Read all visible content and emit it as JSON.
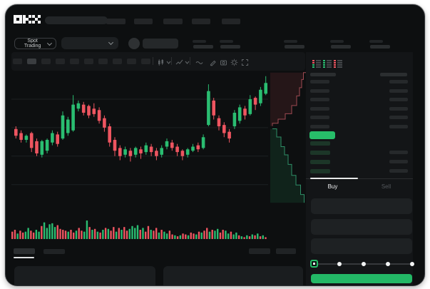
{
  "app": {
    "logo_text": "OKX"
  },
  "header": {
    "nav_item_count": 5,
    "search": {
      "placeholder": ""
    }
  },
  "market_bar": {
    "mode_label": "Spot Trading",
    "stat_group_count": 5
  },
  "chart_toolbar": {
    "timeframe_count": 10,
    "active_timeframe_index": 1,
    "icons": [
      "candle-type",
      "chevron-down",
      "interval",
      "chevron-down",
      "indicator-wave",
      "draw-pencil",
      "camera",
      "settings-gear",
      "fullscreen"
    ]
  },
  "order_book": {
    "view_icons": [
      "combined",
      "bids",
      "asks"
    ],
    "ask_row_count": 6,
    "bid_row_count": 4,
    "bid_right_row_count": 3,
    "last_price_color": "#27bd69"
  },
  "trade_panel": {
    "buy_label": "Buy",
    "sell_label": "Sell",
    "active_tab": "Buy",
    "field_count": 3,
    "slider_stops": [
      0,
      25,
      50,
      75,
      100
    ],
    "slider_value": 0,
    "buy_button_color": "#23b866"
  },
  "bottom_bar": {
    "left_tab_count": 2,
    "active_tab_index": 0,
    "right_button_count": 2,
    "panel_count": 2
  },
  "colors": {
    "background": "#0d0f10",
    "panel": "#17191b",
    "placeholder": "#242729",
    "up_green": "#2abd71",
    "down_red": "#ee5560",
    "accent_green": "#23b866",
    "text": "#c9ccce",
    "text_dim": "#53575b",
    "grid": "#1d2022"
  },
  "chart_data": {
    "type": "candlestick+volume+depth",
    "price_range": [
      0,
      100
    ],
    "gridline_prices": [
      80,
      59,
      38,
      17
    ],
    "candles_ochl": [
      [
        58,
        53,
        60,
        51
      ],
      [
        55,
        50,
        57,
        48
      ],
      [
        50,
        53,
        54,
        48
      ],
      [
        55,
        44,
        56,
        41
      ],
      [
        49,
        40,
        51,
        38
      ],
      [
        39,
        49,
        50,
        37
      ],
      [
        42,
        50,
        51,
        40
      ],
      [
        48,
        55,
        57,
        46
      ],
      [
        54,
        47,
        56,
        45
      ],
      [
        51,
        68,
        71,
        50
      ],
      [
        55,
        65,
        67,
        53
      ],
      [
        57,
        76,
        83,
        56
      ],
      [
        73,
        77,
        79,
        71
      ],
      [
        76,
        70,
        78,
        68
      ],
      [
        75,
        68,
        76,
        66
      ],
      [
        73,
        69,
        77,
        67
      ],
      [
        72,
        64,
        74,
        62
      ],
      [
        66,
        59,
        68,
        56
      ],
      [
        60,
        48,
        62,
        45
      ],
      [
        50,
        42,
        52,
        38
      ],
      [
        44,
        38,
        46,
        35
      ],
      [
        39,
        43,
        45,
        37
      ],
      [
        42,
        38,
        44,
        34
      ],
      [
        39,
        44,
        45,
        37
      ],
      [
        43,
        40,
        45,
        36
      ],
      [
        41,
        46,
        48,
        39
      ],
      [
        45,
        41,
        47,
        38
      ],
      [
        42,
        38,
        44,
        35
      ],
      [
        39,
        44,
        46,
        37
      ],
      [
        45,
        49,
        51,
        43
      ],
      [
        48,
        44,
        50,
        42
      ],
      [
        45,
        41,
        47,
        38
      ],
      [
        42,
        38,
        43,
        35
      ],
      [
        39,
        43,
        44,
        37
      ],
      [
        42,
        45,
        47,
        41
      ],
      [
        46,
        43,
        48,
        41
      ],
      [
        44,
        52,
        54,
        43
      ],
      [
        61,
        86,
        91,
        60
      ],
      [
        79,
        68,
        81,
        65
      ],
      [
        66,
        60,
        68,
        57
      ],
      [
        61,
        55,
        63,
        52
      ],
      [
        56,
        51,
        58,
        48
      ],
      [
        60,
        70,
        72,
        58
      ],
      [
        64,
        74,
        76,
        62
      ],
      [
        73,
        68,
        75,
        65
      ],
      [
        69,
        80,
        83,
        68
      ],
      [
        81,
        76,
        82,
        72
      ],
      [
        77,
        87,
        89,
        75
      ],
      [
        84,
        92,
        97,
        83
      ],
      [
        90,
        86,
        93,
        84
      ]
    ],
    "volume_heights": [
      8,
      10,
      6,
      9,
      7,
      8,
      12,
      9,
      7,
      10,
      8,
      14,
      18,
      12,
      16,
      17,
      13,
      15,
      11,
      10,
      9,
      8,
      10,
      7,
      9,
      12,
      9,
      8,
      20,
      13,
      10,
      11,
      8,
      7,
      10,
      12,
      11,
      9,
      13,
      8,
      12,
      10,
      13,
      9,
      11,
      14,
      12,
      15,
      10,
      12,
      8,
      14,
      10,
      9,
      12,
      7,
      10,
      8,
      6,
      9,
      5,
      4,
      3,
      4,
      6,
      5,
      4,
      7,
      6,
      5,
      8,
      7,
      9,
      12,
      8,
      10,
      9,
      11,
      7,
      10,
      9,
      6,
      8,
      5,
      7,
      4,
      3,
      2,
      4,
      3,
      5,
      4,
      6,
      3,
      4,
      2
    ],
    "volume_colors": "rrgrrggrrggrgggggrrrrgrrgrrggrgrgrgrgrrgrgrrggggrgrrgrrgrggrrgrgrrgrrgrgrrgrggrrggrggrgrgrgrgrgr",
    "depth": {
      "asks": [
        [
          1,
          0.03
        ],
        [
          0.93,
          0.08
        ],
        [
          0.88,
          0.14
        ],
        [
          0.82,
          0.2
        ],
        [
          0.74,
          0.27
        ],
        [
          0.6,
          0.33
        ],
        [
          0.42,
          0.37
        ],
        [
          0.22,
          0.4
        ],
        [
          0.06,
          0.42
        ]
      ],
      "bids": [
        [
          0.06,
          0.44
        ],
        [
          0.18,
          0.5
        ],
        [
          0.3,
          0.57
        ],
        [
          0.4,
          0.63
        ],
        [
          0.5,
          0.7
        ],
        [
          0.6,
          0.78
        ],
        [
          0.72,
          0.85
        ],
        [
          0.85,
          0.92
        ],
        [
          0.95,
          0.98
        ]
      ]
    }
  }
}
